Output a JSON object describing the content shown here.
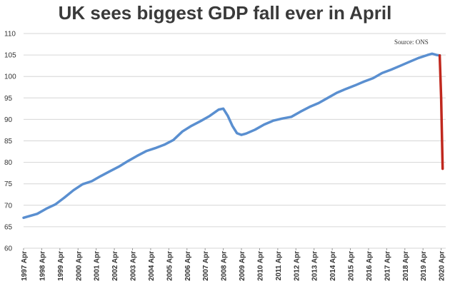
{
  "chart_data": {
    "type": "line",
    "title": "UK sees biggest GDP fall ever in April",
    "source": "Source: ONS",
    "xlabel": "",
    "ylabel": "",
    "ylim": [
      60,
      110
    ],
    "y_ticks": [
      60,
      65,
      70,
      75,
      80,
      85,
      90,
      95,
      100,
      105,
      110
    ],
    "grid": true,
    "x_tick_labels": [
      "1997 Apr",
      "1998 Apr",
      "1999 Apr",
      "2000 Apr",
      "2001 Apr",
      "2002 Apr",
      "2003 Apr",
      "2004 Apr",
      "2005 Apr",
      "2006 Apr",
      "2007 Apr",
      "2008 Apr",
      "2009 Apr",
      "2010 Apr",
      "2011 Apr",
      "2012 Apr",
      "2013 Apr",
      "2014 Apr",
      "2015 Apr",
      "2016 Apr",
      "2017 Apr",
      "2018 Apr",
      "2019 Apr",
      "2020 Apr"
    ],
    "colors": {
      "main": "#5a8fd0",
      "fall": "#c0281e",
      "background": "#ffffff",
      "grid": "#d6d6d6"
    },
    "series": [
      {
        "x": [
          1997.25,
          1998.0,
          1998.5,
          1999.0,
          1999.5,
          2000.0,
          2000.5,
          2001.0,
          2001.5,
          2002.0,
          2002.5,
          2003.0,
          2003.5,
          2004.0,
          2004.5,
          2005.0,
          2005.5,
          2006.0,
          2006.5,
          2007.0,
          2007.5,
          2008.0,
          2008.25,
          2008.5,
          2008.75,
          2009.0,
          2009.25,
          2009.5,
          2010.0,
          2010.5,
          2011.0,
          2011.5,
          2012.0,
          2012.5,
          2013.0,
          2013.5,
          2014.0,
          2014.5,
          2015.0,
          2015.5,
          2016.0,
          2016.5,
          2017.0,
          2017.5,
          2018.0,
          2018.5,
          2019.0,
          2019.5,
          2019.75,
          2020.0,
          2020.17
        ],
        "values": [
          67.1,
          68.0,
          69.2,
          70.2,
          71.8,
          73.5,
          74.9,
          75.6,
          76.8,
          77.9,
          79.0,
          80.3,
          81.5,
          82.6,
          83.3,
          84.1,
          85.2,
          87.2,
          88.5,
          89.6,
          90.8,
          92.3,
          92.5,
          90.8,
          88.5,
          86.8,
          86.4,
          86.7,
          87.6,
          88.8,
          89.7,
          90.2,
          90.6,
          91.8,
          92.9,
          93.8,
          95.0,
          96.2,
          97.1,
          97.9,
          98.8,
          99.6,
          100.8,
          101.6,
          102.5,
          103.4,
          104.3,
          105.0,
          105.3,
          105.0,
          104.9
        ]
      },
      {
        "x": [
          2020.17,
          2020.25,
          2020.33
        ],
        "values": [
          104.9,
          95.0,
          78.5
        ]
      }
    ]
  }
}
